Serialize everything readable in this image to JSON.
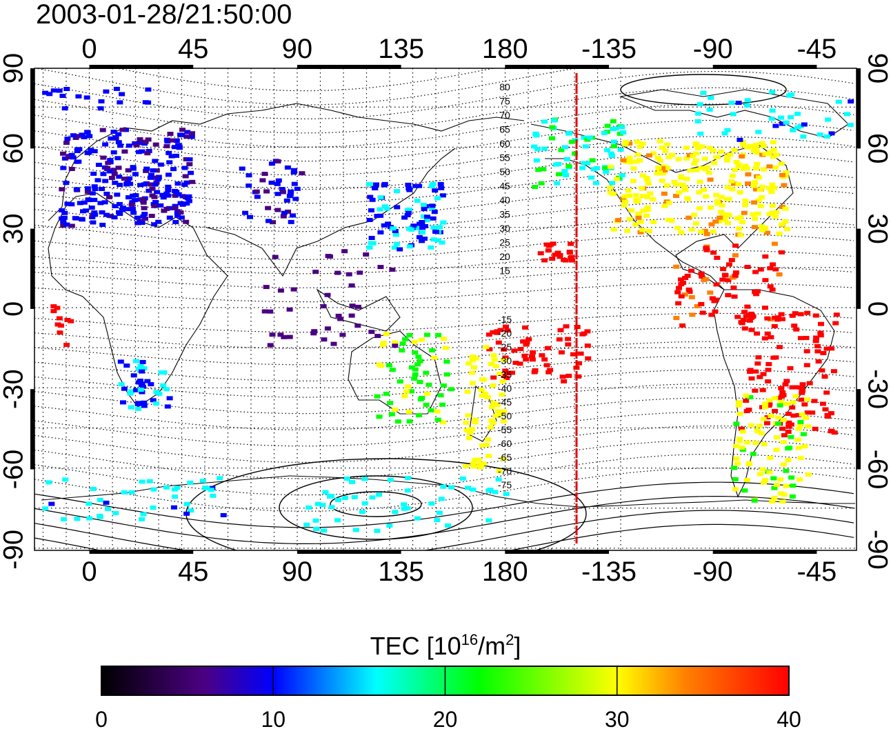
{
  "timestamp": "2003-01-28/21:50:00",
  "map": {
    "top_lon_ticks": [
      "0",
      "45",
      "90",
      "135",
      "180",
      "-135",
      "-90",
      "-45"
    ],
    "bottom_lon_ticks": [
      "0",
      "45",
      "90",
      "135",
      "180",
      "-135",
      "-90",
      "-45"
    ],
    "left_lat_ticks": [
      "90",
      "60",
      "30",
      "0",
      "-30",
      "-60",
      "-90"
    ],
    "right_lat_ticks": [
      "90",
      "60",
      "30",
      "0",
      "-30",
      "-60",
      "-90"
    ],
    "contour_labels_north": [
      "80",
      "75",
      "70",
      "65",
      "60",
      "55",
      "50",
      "45",
      "40",
      "35",
      "30",
      "25",
      "20",
      "15"
    ],
    "contour_labels_south": [
      "-15",
      "-20",
      "-25",
      "-30",
      "-35",
      "-40",
      "-45",
      "-50",
      "-55",
      "-60",
      "-65",
      "-70",
      "-75"
    ],
    "meridian_line_color": "#e60000"
  },
  "colorbar": {
    "title": "TEC  [10",
    "title_exp": "16",
    "title_mid": "/m",
    "title_exp2": "2",
    "title_end": "]",
    "min": 0,
    "max": 40,
    "tick_labels": [
      "0",
      "10",
      "20",
      "30",
      "40"
    ],
    "colors": [
      "#000000",
      "#4b0082",
      "#0000ff",
      "#00ffff",
      "#00ff00",
      "#ffff00",
      "#ff8000",
      "#ff0000"
    ]
  }
}
